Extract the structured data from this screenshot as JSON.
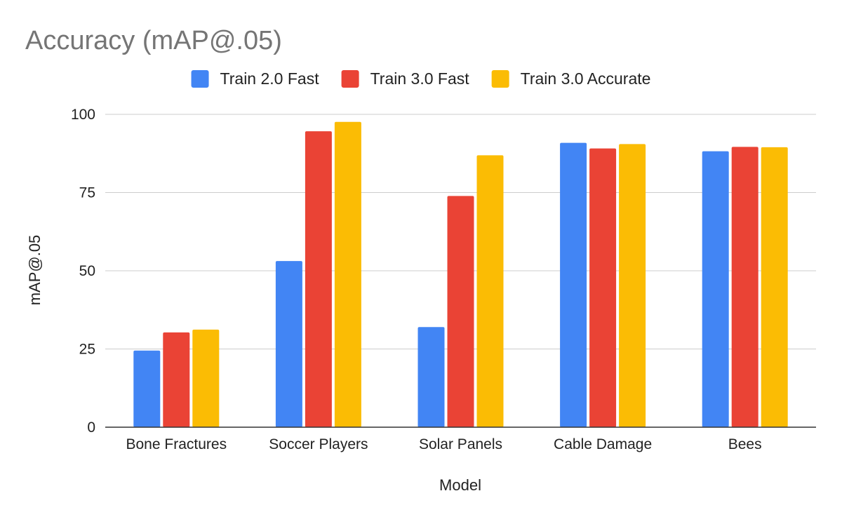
{
  "chart_data": {
    "type": "bar",
    "title": "Accuracy (mAP@.05)",
    "xlabel": "Model",
    "ylabel": "mAP@.05",
    "categories": [
      "Bone Fractures",
      "Soccer Players",
      "Solar Panels",
      "Cable Damage",
      "Bees"
    ],
    "series": [
      {
        "name": "Train 2.0 Fast",
        "color": "#4285F4",
        "values": [
          24.5,
          53.1,
          32.0,
          90.9,
          88.2
        ]
      },
      {
        "name": "Train 3.0 Fast",
        "color": "#EA4335",
        "values": [
          30.3,
          94.6,
          73.9,
          89.1,
          89.6
        ]
      },
      {
        "name": "Train 3.0 Accurate",
        "color": "#FBBC04",
        "values": [
          31.2,
          97.6,
          86.9,
          90.5,
          89.5
        ]
      }
    ],
    "ylim": [
      0,
      100
    ],
    "yticks": [
      0,
      25,
      50,
      75,
      100
    ],
    "grid": true,
    "legend_position": "top"
  }
}
